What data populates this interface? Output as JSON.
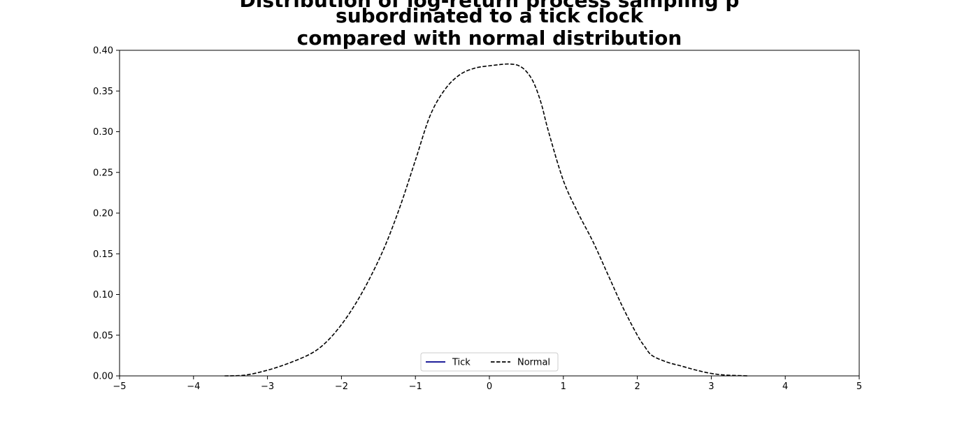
{
  "chart_data": {
    "type": "line",
    "title_lines": [
      "Distribution of log-return process sampling p",
      "subordinated to a tick clock",
      "compared with normal distribution"
    ],
    "xlabel": "",
    "ylabel": "",
    "xlim": [
      -5,
      5
    ],
    "ylim": [
      0,
      0.4
    ],
    "x_ticks": [
      -5,
      -4,
      -3,
      -2,
      -1,
      0,
      1,
      2,
      3,
      4,
      5
    ],
    "x_tick_labels": [
      "−5",
      "−4",
      "−3",
      "−2",
      "−1",
      "0",
      "1",
      "2",
      "3",
      "4",
      "5"
    ],
    "y_ticks": [
      0,
      0.05,
      0.1,
      0.15,
      0.2,
      0.25,
      0.3,
      0.35,
      0.4
    ],
    "y_tick_labels": [
      "0.00",
      "0.05",
      "0.10",
      "0.15",
      "0.20",
      "0.25",
      "0.30",
      "0.35",
      "0.40"
    ],
    "grid": false,
    "legend_position": "bottom-center",
    "series": [
      {
        "name": "Tick",
        "color": "#00008b",
        "style": "solid",
        "x": [],
        "y": []
      },
      {
        "name": "Normal",
        "color": "#000000",
        "style": "dashed",
        "x": [
          -3.58,
          -3.3,
          -3.0,
          -2.7,
          -2.4,
          -2.2,
          -2.0,
          -1.8,
          -1.6,
          -1.4,
          -1.2,
          -1.0,
          -0.8,
          -0.6,
          -0.4,
          -0.2,
          0.0,
          0.1,
          0.2,
          0.3,
          0.4,
          0.5,
          0.6,
          0.7,
          0.8,
          1.0,
          1.2,
          1.4,
          1.6,
          1.8,
          2.0,
          2.1,
          2.2,
          2.4,
          2.6,
          2.8,
          3.0,
          3.2,
          3.5
        ],
        "y": [
          0.0,
          0.001,
          0.007,
          0.016,
          0.028,
          0.042,
          0.063,
          0.09,
          0.123,
          0.162,
          0.21,
          0.265,
          0.32,
          0.352,
          0.37,
          0.378,
          0.381,
          0.382,
          0.383,
          0.383,
          0.381,
          0.374,
          0.36,
          0.335,
          0.3,
          0.24,
          0.2,
          0.165,
          0.125,
          0.085,
          0.05,
          0.036,
          0.025,
          0.017,
          0.012,
          0.007,
          0.003,
          0.001,
          0.0
        ]
      }
    ]
  }
}
